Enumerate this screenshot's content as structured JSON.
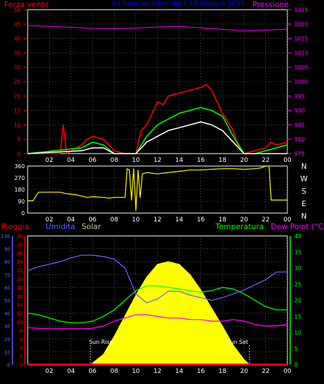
{
  "chart_data": [
    {
      "type": "line",
      "title": "24 hour weather data  19 Maggio 2018",
      "left_axis_label": "Forza vento",
      "right_axis_label": "Pressione",
      "x_ticks": [
        "02",
        "04",
        "06",
        "08",
        "10",
        "12",
        "14",
        "16",
        "18",
        "20",
        "22",
        "00"
      ],
      "y_left_ticks": [
        "0",
        "5",
        "10",
        "15",
        "20",
        "25",
        "30",
        "35",
        "40",
        "45",
        "50"
      ],
      "y_right_ticks": [
        "975",
        "980",
        "985",
        "990",
        "995",
        "1000",
        "1005",
        "1010",
        "1015",
        "1020",
        "1025"
      ],
      "x_range": [
        0,
        24
      ],
      "y_left_range": [
        0,
        50
      ],
      "y_right_range": [
        975,
        1025
      ],
      "colors": {
        "gust": "#ff0000",
        "wind": "#00ff00",
        "avg_wind": "#ffffff",
        "pressure": "#ff00ff",
        "axis_left": "#ff0000",
        "axis_right": "#ff00ff",
        "title": "#0000ff"
      },
      "series": [
        {
          "name": "gust",
          "color": "#ff0000",
          "hours": [
            0,
            3,
            3.3,
            3.6,
            5,
            5.5,
            6,
            7,
            8,
            9,
            10,
            10.5,
            11,
            11.5,
            12,
            12.5,
            13,
            14,
            15,
            16,
            16.5,
            17,
            17.5,
            18,
            19,
            19.5,
            20,
            21,
            22,
            22.5,
            23,
            24
          ],
          "values": [
            0,
            0,
            10,
            0,
            3,
            5,
            6,
            5,
            1,
            0,
            0,
            8,
            10,
            14,
            18,
            17,
            20,
            21,
            22,
            23,
            24,
            22,
            18,
            14,
            8,
            2,
            0,
            1,
            2,
            4,
            3,
            4
          ]
        },
        {
          "name": "wind",
          "color": "#00ff00",
          "hours": [
            0,
            5,
            6,
            7,
            8,
            10,
            11,
            12,
            13,
            14,
            15,
            16,
            17,
            18,
            19,
            20,
            21,
            22,
            23,
            24
          ],
          "values": [
            0,
            2,
            4,
            3,
            0,
            0,
            6,
            10,
            12,
            14,
            15,
            16,
            15,
            13,
            6,
            0,
            0,
            1,
            2,
            3
          ]
        },
        {
          "name": "avg_wind",
          "color": "#ffffff",
          "hours": [
            0,
            5,
            6,
            7,
            8,
            10,
            11,
            12,
            13,
            14,
            15,
            16,
            17,
            18,
            19,
            20,
            24
          ],
          "values": [
            0,
            1,
            2,
            2,
            0,
            0,
            4,
            6,
            8,
            9,
            10,
            11,
            10,
            8,
            4,
            0,
            0
          ]
        },
        {
          "name": "pressure",
          "color": "#ff00ff",
          "hours": [
            0,
            2,
            4,
            6,
            8,
            10,
            12,
            14,
            16,
            18,
            20,
            22,
            24
          ],
          "values": [
            1019.5,
            1019.2,
            1018.9,
            1018.5,
            1018.4,
            1018.6,
            1019.0,
            1019.2,
            1018.7,
            1018.2,
            1017.6,
            1017.9,
            1018.2
          ]
        }
      ]
    },
    {
      "type": "line",
      "right_labels": [
        "N",
        "W",
        "S",
        "E",
        "N"
      ],
      "x_ticks": [
        "02",
        "04",
        "06",
        "08",
        "10",
        "12",
        "14",
        "16",
        "18",
        "20",
        "22",
        "00"
      ],
      "y_ticks": [
        "0",
        "90",
        "180",
        "270",
        "360"
      ],
      "x_range": [
        0,
        24
      ],
      "y_range": [
        0,
        360
      ],
      "colors": {
        "direction": "#ffff00",
        "label": "#ffffff"
      },
      "series": [
        {
          "name": "direction",
          "color": "#ffff00",
          "hours": [
            0,
            0.5,
            1,
            3,
            3.5,
            4,
            4.5,
            5,
            5.5,
            6,
            7,
            7.5,
            8,
            9,
            9.2,
            9.4,
            9.6,
            9.8,
            10,
            10.2,
            10.4,
            10.6,
            11,
            12,
            13,
            14,
            15,
            16,
            17,
            18,
            19,
            20,
            21,
            21.5,
            22,
            22.3,
            22.5,
            24
          ],
          "values": [
            95,
            95,
            160,
            160,
            150,
            145,
            140,
            130,
            120,
            125,
            120,
            115,
            120,
            120,
            340,
            330,
            100,
            340,
            20,
            330,
            120,
            300,
            310,
            300,
            310,
            320,
            330,
            330,
            335,
            340,
            340,
            335,
            340,
            345,
            360,
            360,
            100,
            100
          ]
        }
      ]
    },
    {
      "type": "line",
      "labels": {
        "rain": "Pioggia",
        "humidity": "Umidita",
        "solar": "Solar",
        "temperature": "Temperatura",
        "dew_point": "Dew Point (°C)",
        "sunrise": "Sun Rise",
        "sunset": "Sun Set"
      },
      "x_ticks": [
        "02",
        "04",
        "06",
        "08",
        "10",
        "12",
        "14",
        "16",
        "18",
        "20",
        "22",
        "00"
      ],
      "y_humidity_ticks": [
        "0",
        "10",
        "20",
        "30",
        "40",
        "50",
        "60",
        "70",
        "80",
        "90",
        "100"
      ],
      "y_rain_ticks": [
        "0",
        "2",
        "4",
        "6",
        "8",
        "10",
        "12",
        "14",
        "16",
        "18",
        "20",
        "22",
        "24",
        "26",
        "28",
        "30"
      ],
      "y_temp_ticks": [
        "0",
        "5",
        "10",
        "15",
        "20",
        "25",
        "30",
        "35",
        "40"
      ],
      "x_range": [
        0,
        24
      ],
      "y_humidity_range": [
        0,
        100
      ],
      "y_rain_range": [
        0,
        30
      ],
      "y_temp_range": [
        0,
        40
      ],
      "sunrise_hour": 5.8,
      "sunset_hour": 20.5,
      "colors": {
        "rain": "#ff0000",
        "humidity": "#6464ff",
        "solar": "#ffff00",
        "solar_label": "#c8c8a0",
        "temperature": "#00ff00",
        "dew_point": "#ff00ff",
        "axis_temp": "#00ff00",
        "axis_rain": "#ff0000",
        "axis_hum": "#6464ff",
        "white": "#ffffff"
      },
      "series": [
        {
          "name": "humidity",
          "color": "#6464ff",
          "hours": [
            0,
            1,
            2,
            3,
            4,
            5,
            6,
            7,
            8,
            9,
            10,
            11,
            12,
            13,
            14,
            15,
            16,
            17,
            18,
            19,
            20,
            21,
            22,
            23,
            24
          ],
          "values": [
            73,
            76,
            78,
            80,
            83,
            85,
            85,
            84,
            82,
            75,
            55,
            48,
            51,
            57,
            57,
            54,
            52,
            50,
            52,
            55,
            58,
            62,
            66,
            72,
            72
          ]
        },
        {
          "name": "temperature",
          "color": "#00ff00",
          "hours": [
            0,
            1,
            2,
            3,
            4,
            5,
            6,
            7,
            8,
            9,
            10,
            11,
            12,
            13,
            14,
            15,
            16,
            17,
            18,
            19,
            20,
            21,
            22,
            23,
            24
          ],
          "values": [
            16,
            15.5,
            14.5,
            13.5,
            13,
            13,
            13.5,
            15,
            17,
            20,
            23,
            24.5,
            24.5,
            24,
            23.5,
            23,
            22.5,
            23,
            24,
            23.5,
            22,
            20,
            18,
            17,
            17
          ]
        },
        {
          "name": "dew_point",
          "color": "#ff00ff",
          "hours": [
            0,
            1,
            2,
            3,
            4,
            5,
            6,
            7,
            8,
            9,
            10,
            11,
            12,
            13,
            14,
            15,
            16,
            17,
            18,
            19,
            20,
            21,
            22,
            23,
            24
          ],
          "values": [
            11.5,
            11.3,
            11.2,
            11.2,
            11.2,
            11.2,
            11.3,
            12,
            13.5,
            14.5,
            15.5,
            15.5,
            15,
            14.5,
            14.5,
            14,
            14,
            13.5,
            13.5,
            14,
            13.5,
            12.5,
            12,
            12,
            12.5
          ]
        },
        {
          "name": "solar",
          "color": "#ffff00",
          "hours": [
            5.8,
            7,
            8,
            9,
            10,
            11,
            12,
            13,
            14,
            15,
            16,
            17,
            18,
            19,
            20,
            20.5
          ],
          "values": [
            0,
            8,
            22,
            38,
            54,
            68,
            78,
            80,
            78,
            70,
            58,
            44,
            30,
            15,
            4,
            0
          ]
        },
        {
          "name": "rain",
          "color": "#ff0000",
          "hours": [
            0,
            24
          ],
          "values": [
            0,
            0
          ]
        }
      ]
    }
  ]
}
